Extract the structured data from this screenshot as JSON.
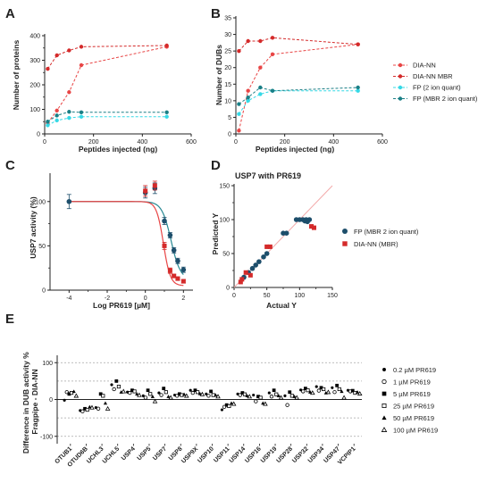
{
  "panels": [
    "A",
    "B",
    "C",
    "D",
    "E"
  ],
  "colors": {
    "dia": "#d42a2a",
    "fp2": "#35d9e6",
    "fpmbr": "#1a7f86",
    "navy": "#1d4e6b",
    "fit_red": "#e84545",
    "fit_teal": "#2a8a94",
    "identity": "#f3aaaa",
    "axis": "#222222",
    "grid": "#a6a6a6"
  },
  "chart_data": [
    {
      "panel": "A",
      "type": "line",
      "xlabel": "Peptides injected (ng)",
      "ylabel": "Number of proteins",
      "xlim": [
        0,
        600
      ],
      "ylim": [
        0,
        400
      ],
      "xticks": [
        "0",
        "200",
        "400",
        "600"
      ],
      "yticks": [
        "0",
        "100",
        "200",
        "300",
        "400"
      ],
      "x": [
        12.5,
        50,
        100,
        150,
        500
      ],
      "series": [
        {
          "name": "DIA-NN",
          "color_key": "fit_red",
          "values": [
            45,
            95,
            170,
            280,
            355
          ]
        },
        {
          "name": "DIA-NN MBR",
          "color_key": "dia",
          "values": [
            265,
            320,
            340,
            355,
            360
          ]
        },
        {
          "name": "FP (2 ion quant)",
          "color_key": "fp2",
          "values": [
            35,
            55,
            65,
            70,
            70
          ]
        },
        {
          "name": "FP (MBR 2 ion quant)",
          "color_key": "fpmbr",
          "values": [
            50,
            75,
            90,
            88,
            88
          ]
        }
      ]
    },
    {
      "panel": "B",
      "type": "line",
      "xlabel": "Peptides injected (ng)",
      "ylabel": "Number of DUBs",
      "xlim": [
        0,
        600
      ],
      "ylim": [
        0,
        35
      ],
      "xticks": [
        "0",
        "200",
        "400",
        "600"
      ],
      "yticks": [
        "0",
        "5",
        "10",
        "15",
        "20",
        "25",
        "30",
        "35"
      ],
      "x": [
        12.5,
        50,
        100,
        150,
        500
      ],
      "series": [
        {
          "name": "DIA-NN",
          "color_key": "fit_red",
          "values": [
            1,
            13,
            20,
            24,
            27
          ]
        },
        {
          "name": "DIA-NN MBR",
          "color_key": "dia",
          "values": [
            25,
            28,
            28,
            29,
            27
          ]
        },
        {
          "name": "FP (2 ion quant)",
          "color_key": "fp2",
          "values": [
            6,
            10,
            12,
            13,
            13
          ]
        },
        {
          "name": "FP (MBR 2 ion quant)",
          "color_key": "fpmbr",
          "values": [
            9,
            11,
            14,
            13,
            14
          ]
        }
      ],
      "legend": {
        "placement": "right",
        "entries": [
          "DIA-NN",
          "DIA-NN MBR",
          "FP (2 ion quant)",
          "FP (MBR 2 ion quant)"
        ]
      }
    },
    {
      "panel": "C",
      "type": "scatter",
      "xlabel": "Log PR619 [µM]",
      "ylabel": "USP7 activity (%)",
      "xlim": [
        -5,
        2.5
      ],
      "ylim": [
        0,
        130
      ],
      "xticks": [
        "-4",
        "-2",
        "0",
        "2"
      ],
      "yticks": [
        "0",
        "50",
        "100"
      ],
      "series": [
        {
          "name": "FP",
          "color_key": "navy",
          "marker": "circle",
          "x": [
            -4,
            0,
            0.5,
            1,
            1.3,
            1.5,
            1.7,
            2
          ],
          "y": [
            100,
            110,
            115,
            78,
            62,
            45,
            33,
            23
          ],
          "err": [
            8,
            6,
            6,
            4,
            3,
            3,
            3,
            3
          ]
        },
        {
          "name": "DIA-NN",
          "color_key": "dia",
          "marker": "square",
          "x": [
            0,
            0.5,
            1,
            1.3,
            1.5,
            1.7,
            2
          ],
          "y": [
            112,
            118,
            50,
            22,
            16,
            13,
            10
          ],
          "err": [
            6,
            5,
            4,
            3,
            2,
            2,
            2
          ]
        }
      ],
      "fits": [
        {
          "color_key": "fit_teal",
          "top": 100,
          "bottom": 12,
          "logIC50": 1.35,
          "hill": 1.8
        },
        {
          "color_key": "fit_red",
          "top": 100,
          "bottom": 5,
          "logIC50": 0.95,
          "hill": 2.4
        }
      ]
    },
    {
      "panel": "D",
      "type": "scatter",
      "title": "USP7 with PR619",
      "xlabel": "Actual Y",
      "ylabel": "Predicted Y",
      "xlim": [
        0,
        150
      ],
      "ylim": [
        0,
        150
      ],
      "xticks": [
        "0",
        "50",
        "100",
        "150"
      ],
      "yticks": [
        "0",
        "50",
        "100",
        "150"
      ],
      "series": [
        {
          "name": "FP (MBR 2 ion quant)",
          "color_key": "navy",
          "marker": "circle",
          "x": [
            15,
            22,
            28,
            33,
            38,
            45,
            50,
            75,
            80,
            95,
            100,
            105,
            108,
            110,
            112,
            115
          ],
          "y": [
            15,
            22,
            28,
            33,
            38,
            45,
            50,
            80,
            80,
            100,
            100,
            100,
            98,
            100,
            97,
            100
          ]
        },
        {
          "name": "DIA-NN (MBR)",
          "color_key": "dia",
          "marker": "square",
          "x": [
            10,
            12,
            18,
            25,
            50,
            55,
            118,
            122
          ],
          "y": [
            8,
            12,
            22,
            18,
            60,
            60,
            90,
            88
          ]
        }
      ],
      "identity_line": true,
      "legend": {
        "placement": "right",
        "entries": [
          "FP (MBR 2 ion quant)",
          "DIA-NN (MBR)"
        ]
      }
    },
    {
      "panel": "E",
      "type": "scatter",
      "ylabel": "Difference in DUB activity %\nFragpipe - DIA-NN",
      "ylim": [
        -120,
        120
      ],
      "yticks": [
        "-100",
        "0",
        "100"
      ],
      "reference_lines": [
        -100,
        -50,
        50,
        100
      ],
      "categories": [
        "OTUB1",
        "OTUD6B",
        "UCHL3",
        "UCHL5",
        "USP4",
        "USP5",
        "USP7",
        "USP8",
        "USP9X",
        "USP10",
        "USP11",
        "USP14",
        "USP16",
        "USP19",
        "USP28",
        "USP32",
        "USP34",
        "USP47",
        "VCPIP1"
      ],
      "series": [
        {
          "name": "0.2 µM PR619",
          "marker": "dot",
          "values": [
            -2,
            -30,
            -22,
            40,
            20,
            10,
            18,
            12,
            25,
            15,
            -28,
            15,
            12,
            18,
            10,
            26,
            35,
            32,
            25
          ]
        },
        {
          "name": "1 µM PR619",
          "marker": "circle-open",
          "values": [
            20,
            -32,
            -25,
            28,
            18,
            5,
            12,
            10,
            18,
            10,
            -20,
            12,
            -5,
            8,
            -15,
            22,
            24,
            20,
            22
          ]
        },
        {
          "name": "5 µM PR619",
          "marker": "square",
          "values": [
            15,
            -25,
            15,
            50,
            25,
            25,
            30,
            15,
            25,
            22,
            -15,
            18,
            8,
            25,
            20,
            30,
            32,
            38,
            24
          ]
        },
        {
          "name": "25 µM PR619",
          "marker": "square-open",
          "values": [
            18,
            -28,
            10,
            35,
            22,
            15,
            20,
            12,
            20,
            12,
            -18,
            14,
            5,
            14,
            10,
            25,
            28,
            28,
            18
          ]
        },
        {
          "name": "50 µM PR619",
          "marker": "triangle",
          "values": [
            22,
            -20,
            -10,
            20,
            15,
            8,
            8,
            14,
            16,
            12,
            -10,
            10,
            -10,
            10,
            8,
            20,
            18,
            22,
            20
          ]
        },
        {
          "name": "100 µM PR619",
          "marker": "triangle-open",
          "values": [
            10,
            -22,
            -25,
            22,
            12,
            -5,
            5,
            10,
            14,
            8,
            -12,
            8,
            -12,
            5,
            5,
            18,
            20,
            5,
            16
          ]
        }
      ],
      "legend": {
        "placement": "right",
        "entries": [
          "0.2 µM PR619",
          "1 µM PR619",
          "5 µM PR619",
          "25 µM PR619",
          "50 µM PR619",
          "100 µM PR619"
        ]
      }
    }
  ]
}
